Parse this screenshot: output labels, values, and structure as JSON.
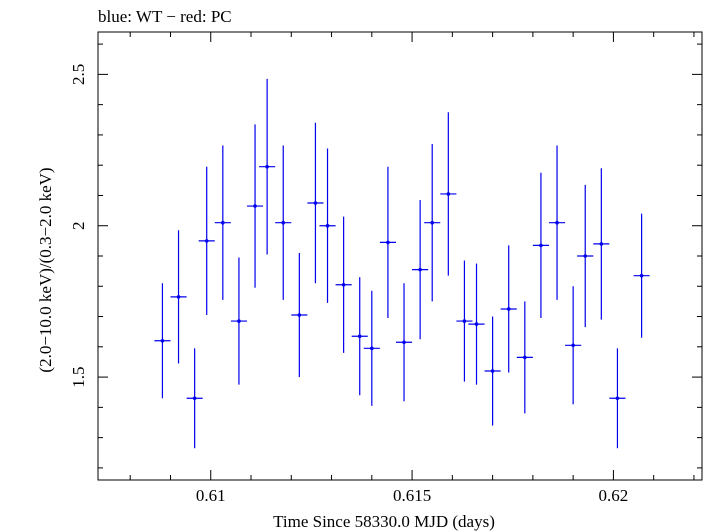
{
  "chart_data": {
    "type": "scatter",
    "title": "blue: WT − red: PC",
    "xlabel": "Time Since 58330.0 MJD (days)",
    "ylabel": "(2.0−10.0 keV)/(0.3−2.0 keV)",
    "xlim": [
      0.6072,
      0.6222
    ],
    "ylim": [
      1.16,
      2.64
    ],
    "x_ticks": [
      0.61,
      0.615,
      0.62
    ],
    "x_tick_labels": [
      "0.61",
      "0.615",
      "0.62"
    ],
    "y_ticks": [
      1.5,
      2.0,
      2.5
    ],
    "y_tick_labels": [
      "1.5",
      "2",
      "2.5"
    ],
    "series": [
      {
        "color": "#0000ee",
        "points": [
          {
            "x": 0.6088,
            "y": 1.62,
            "xerr": 0.0002,
            "yerr_lo": 0.19,
            "yerr_hi": 0.19
          },
          {
            "x": 0.6092,
            "y": 1.765,
            "xerr": 0.0002,
            "yerr_lo": 0.22,
            "yerr_hi": 0.22
          },
          {
            "x": 0.6096,
            "y": 1.43,
            "xerr": 0.0002,
            "yerr_lo": 0.165,
            "yerr_hi": 0.165
          },
          {
            "x": 0.6099,
            "y": 1.95,
            "xerr": 0.0002,
            "yerr_lo": 0.245,
            "yerr_hi": 0.245
          },
          {
            "x": 0.6103,
            "y": 2.01,
            "xerr": 0.0002,
            "yerr_lo": 0.255,
            "yerr_hi": 0.255
          },
          {
            "x": 0.6107,
            "y": 1.685,
            "xerr": 0.0002,
            "yerr_lo": 0.21,
            "yerr_hi": 0.21
          },
          {
            "x": 0.6111,
            "y": 2.065,
            "xerr": 0.0002,
            "yerr_lo": 0.27,
            "yerr_hi": 0.27
          },
          {
            "x": 0.6114,
            "y": 2.195,
            "xerr": 0.0002,
            "yerr_lo": 0.29,
            "yerr_hi": 0.29
          },
          {
            "x": 0.6118,
            "y": 2.01,
            "xerr": 0.0002,
            "yerr_lo": 0.255,
            "yerr_hi": 0.255
          },
          {
            "x": 0.6122,
            "y": 1.705,
            "xerr": 0.0002,
            "yerr_lo": 0.205,
            "yerr_hi": 0.205
          },
          {
            "x": 0.6126,
            "y": 2.075,
            "xerr": 0.0002,
            "yerr_lo": 0.265,
            "yerr_hi": 0.265
          },
          {
            "x": 0.6129,
            "y": 2.0,
            "xerr": 0.0002,
            "yerr_lo": 0.255,
            "yerr_hi": 0.255
          },
          {
            "x": 0.6133,
            "y": 1.805,
            "xerr": 0.0002,
            "yerr_lo": 0.225,
            "yerr_hi": 0.225
          },
          {
            "x": 0.6137,
            "y": 1.635,
            "xerr": 0.0002,
            "yerr_lo": 0.195,
            "yerr_hi": 0.195
          },
          {
            "x": 0.614,
            "y": 1.595,
            "xerr": 0.0002,
            "yerr_lo": 0.19,
            "yerr_hi": 0.19
          },
          {
            "x": 0.6144,
            "y": 1.945,
            "xerr": 0.0002,
            "yerr_lo": 0.25,
            "yerr_hi": 0.25
          },
          {
            "x": 0.6148,
            "y": 1.615,
            "xerr": 0.0002,
            "yerr_lo": 0.195,
            "yerr_hi": 0.195
          },
          {
            "x": 0.6152,
            "y": 1.855,
            "xerr": 0.0002,
            "yerr_lo": 0.23,
            "yerr_hi": 0.23
          },
          {
            "x": 0.6155,
            "y": 2.01,
            "xerr": 0.0002,
            "yerr_lo": 0.26,
            "yerr_hi": 0.26
          },
          {
            "x": 0.6159,
            "y": 2.105,
            "xerr": 0.0002,
            "yerr_lo": 0.27,
            "yerr_hi": 0.27
          },
          {
            "x": 0.6163,
            "y": 1.685,
            "xerr": 0.0002,
            "yerr_lo": 0.2,
            "yerr_hi": 0.2
          },
          {
            "x": 0.6166,
            "y": 1.675,
            "xerr": 0.0002,
            "yerr_lo": 0.2,
            "yerr_hi": 0.2
          },
          {
            "x": 0.617,
            "y": 1.52,
            "xerr": 0.0002,
            "yerr_lo": 0.18,
            "yerr_hi": 0.18
          },
          {
            "x": 0.6174,
            "y": 1.725,
            "xerr": 0.0002,
            "yerr_lo": 0.21,
            "yerr_hi": 0.21
          },
          {
            "x": 0.6178,
            "y": 1.565,
            "xerr": 0.0002,
            "yerr_lo": 0.185,
            "yerr_hi": 0.185
          },
          {
            "x": 0.6182,
            "y": 1.935,
            "xerr": 0.0002,
            "yerr_lo": 0.24,
            "yerr_hi": 0.24
          },
          {
            "x": 0.6186,
            "y": 2.01,
            "xerr": 0.0002,
            "yerr_lo": 0.255,
            "yerr_hi": 0.255
          },
          {
            "x": 0.619,
            "y": 1.605,
            "xerr": 0.0002,
            "yerr_lo": 0.195,
            "yerr_hi": 0.195
          },
          {
            "x": 0.6193,
            "y": 1.9,
            "xerr": 0.0002,
            "yerr_lo": 0.235,
            "yerr_hi": 0.235
          },
          {
            "x": 0.6197,
            "y": 1.94,
            "xerr": 0.0002,
            "yerr_lo": 0.25,
            "yerr_hi": 0.25
          },
          {
            "x": 0.6201,
            "y": 1.43,
            "xerr": 0.0002,
            "yerr_lo": 0.165,
            "yerr_hi": 0.165
          },
          {
            "x": 0.6207,
            "y": 1.835,
            "xerr": 0.0002,
            "yerr_lo": 0.205,
            "yerr_hi": 0.205
          }
        ]
      }
    ]
  }
}
